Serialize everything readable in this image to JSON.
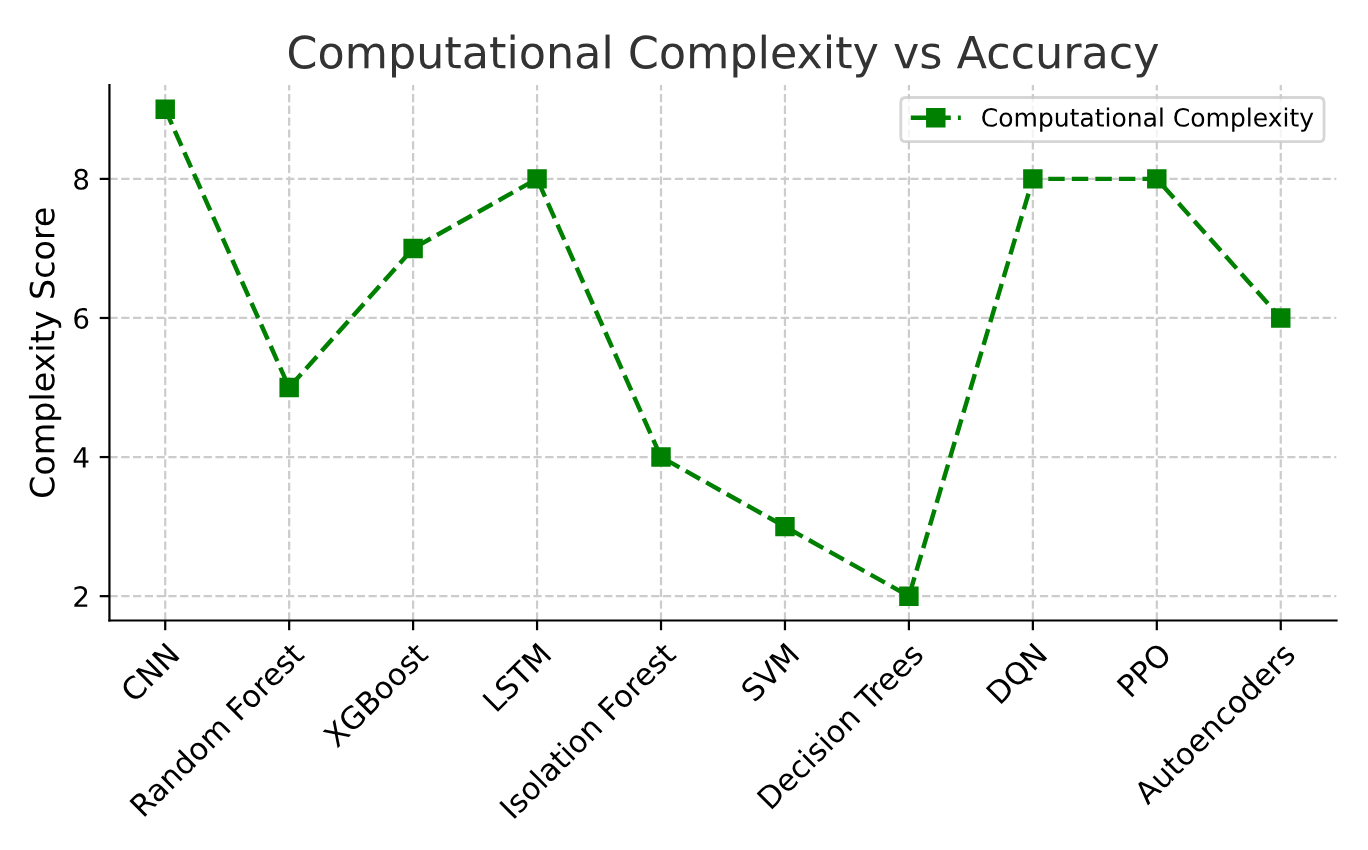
{
  "chart_data": {
    "type": "line",
    "title": "Computational Complexity vs Accuracy",
    "ylabel": "Complexity Score",
    "categories": [
      "CNN",
      "Random Forest",
      "XGBoost",
      "LSTM",
      "Isolation Forest",
      "SVM",
      "Decision Trees",
      "DQN",
      "PPO",
      "Autoencoders"
    ],
    "series": [
      {
        "name": "Computational Complexity",
        "color": "#008000",
        "values": [
          9,
          5,
          7,
          8,
          4,
          3,
          2,
          8,
          8,
          6
        ]
      }
    ],
    "ylim": [
      1.65,
      9.35
    ],
    "yticks": [
      2,
      4,
      6,
      8
    ],
    "grid": true,
    "legend": "top right",
    "marker": "square",
    "line_style": "dashed"
  }
}
